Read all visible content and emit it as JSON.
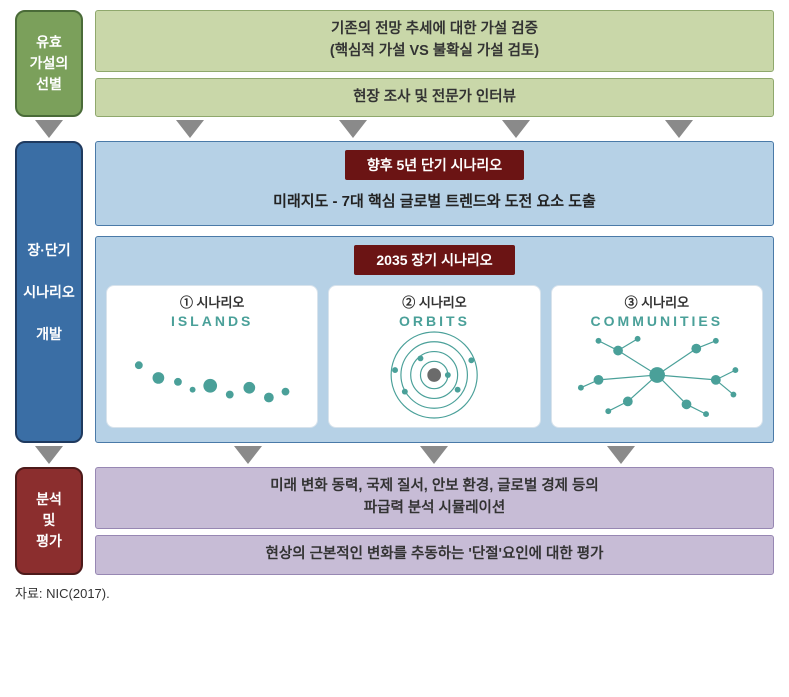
{
  "section1": {
    "side_label": "유효\n가설의\n선별",
    "box1_line1": "기존의 전망 추세에 대한 가설 검증",
    "box1_line2": "(핵심적 가설 VS 불확실 가설 검토)",
    "box2": "현장 조사 및 전문가 인터뷰"
  },
  "section2": {
    "side_label": "장·단기\n\n시나리오\n\n개발",
    "panel_short": {
      "badge": "향후 5년 단기 시나리오",
      "subtitle": "미래지도 - 7대 핵심 글로벌 트렌드와 도전 요소 도출"
    },
    "panel_long": {
      "badge": "2035 장기 시나리오",
      "scenarios": [
        {
          "num": "① 시나리오",
          "eng": "ISLANDS"
        },
        {
          "num": "② 시나리오",
          "eng": "ORBITS"
        },
        {
          "num": "③ 시나리오",
          "eng": "COMMUNITIES"
        }
      ]
    }
  },
  "section3": {
    "side_label": "분석\n및\n평가",
    "box1_line1": "미래 변화 동력, 국제 질서, 안보 환경, 글로벌 경제 등의",
    "box1_line2": "파급력 분석 시뮬레이션",
    "box2": "현상의 근본적인 변화를 추동하는 '단절'요인에 대한 평가"
  },
  "source": "자료: NIC(2017).",
  "colors": {
    "side_green_bg": "#7ba05b",
    "side_green_border": "#4a6b38",
    "side_blue_bg": "#3a6ea5",
    "side_blue_border": "#1f3a5f",
    "side_red_bg": "#8b2e2e",
    "side_red_border": "#4d1a1a",
    "box_green_bg": "#c9d7a9",
    "box_green_border": "#8fa86c",
    "box_purple_bg": "#c7bcd6",
    "box_purple_border": "#9787b3",
    "panel_blue_bg": "#b6d1e6",
    "panel_blue_border": "#4a7aa8",
    "badge_red_bg": "#6b1414",
    "scenario_accent": "#4aa099",
    "arrow": "#8a8a8a"
  }
}
